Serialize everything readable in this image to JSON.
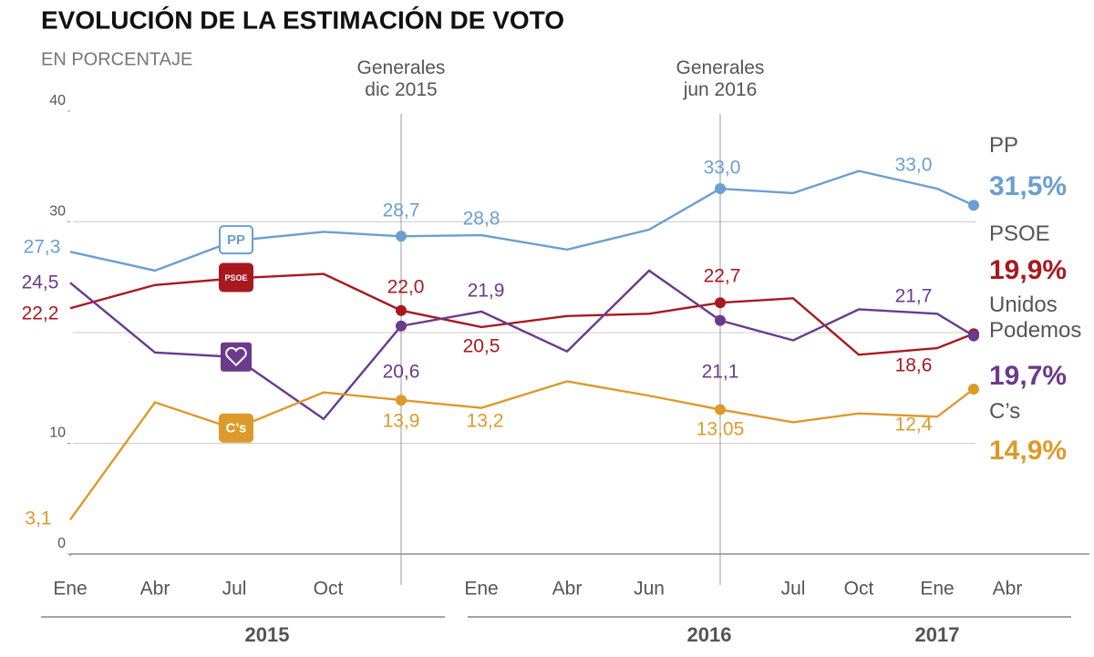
{
  "chart_data": {
    "type": "line",
    "title": "EVOLUCIÓN DE LA ESTIMACIÓN DE VOTO",
    "subtitle": "EN PORCENTAJE",
    "categories": [
      "Ene",
      "Abr",
      "Jul",
      "Oct",
      null,
      "Ene",
      "Abr",
      "Jun",
      null,
      "Jul",
      "Oct",
      "Ene",
      null,
      "Abr"
    ],
    "years": [
      "2015",
      "2016",
      "2017"
    ],
    "annotations": [
      {
        "index": 4,
        "text": "Generales dic 2015"
      },
      {
        "index": 8,
        "text": "Generales jun 2016"
      }
    ],
    "ylim": [
      0,
      40
    ],
    "yticks": [
      0,
      10,
      30,
      40
    ],
    "grid_lines": [
      10,
      20,
      30
    ],
    "series": [
      {
        "name": "PP",
        "color": "#6a9fd0",
        "logo": "PP",
        "values": [
          27.3,
          25.6,
          28.3,
          29.1,
          28.7,
          28.8,
          27.5,
          29.3,
          33.0,
          32.6,
          34.6,
          33.0,
          31.5,
          null
        ],
        "value_labels": [
          "27,3",
          null,
          null,
          null,
          "28,7",
          "28,8",
          null,
          null,
          "33,0",
          null,
          null,
          "33,0",
          "31,5%",
          null
        ]
      },
      {
        "name": "PSOE",
        "color": "#a8191f",
        "logo": "PSOE",
        "values": [
          22.2,
          24.3,
          24.9,
          25.3,
          22.0,
          20.5,
          21.5,
          21.7,
          22.7,
          23.1,
          18.0,
          18.6,
          19.9,
          null
        ],
        "value_labels": [
          "22,2",
          null,
          null,
          null,
          "22,0",
          "20,5",
          null,
          null,
          "22,7",
          null,
          null,
          "18,6",
          "19,9%",
          null
        ]
      },
      {
        "name": "Unidos Podemos",
        "color": "#6b3a8c",
        "values": [
          24.5,
          18.2,
          17.8,
          12.2,
          20.6,
          21.9,
          18.3,
          25.6,
          21.1,
          19.3,
          22.1,
          21.7,
          19.7,
          null
        ],
        "value_labels": [
          "24,5",
          null,
          null,
          null,
          "20,6",
          "21,9",
          null,
          null,
          "21,1",
          null,
          null,
          "21,7",
          "19,7%",
          null
        ]
      },
      {
        "name": "C’s",
        "color": "#dc9a2a",
        "logo": "C’s",
        "values": [
          3.1,
          13.7,
          11.3,
          14.6,
          13.9,
          13.2,
          15.6,
          14.3,
          13.05,
          11.9,
          12.7,
          12.4,
          14.9,
          null
        ],
        "value_labels": [
          "3,1",
          null,
          null,
          null,
          "13,9",
          "13,2",
          null,
          null,
          "13,05",
          null,
          null,
          "12,4",
          "14,9%",
          null
        ]
      }
    ]
  }
}
